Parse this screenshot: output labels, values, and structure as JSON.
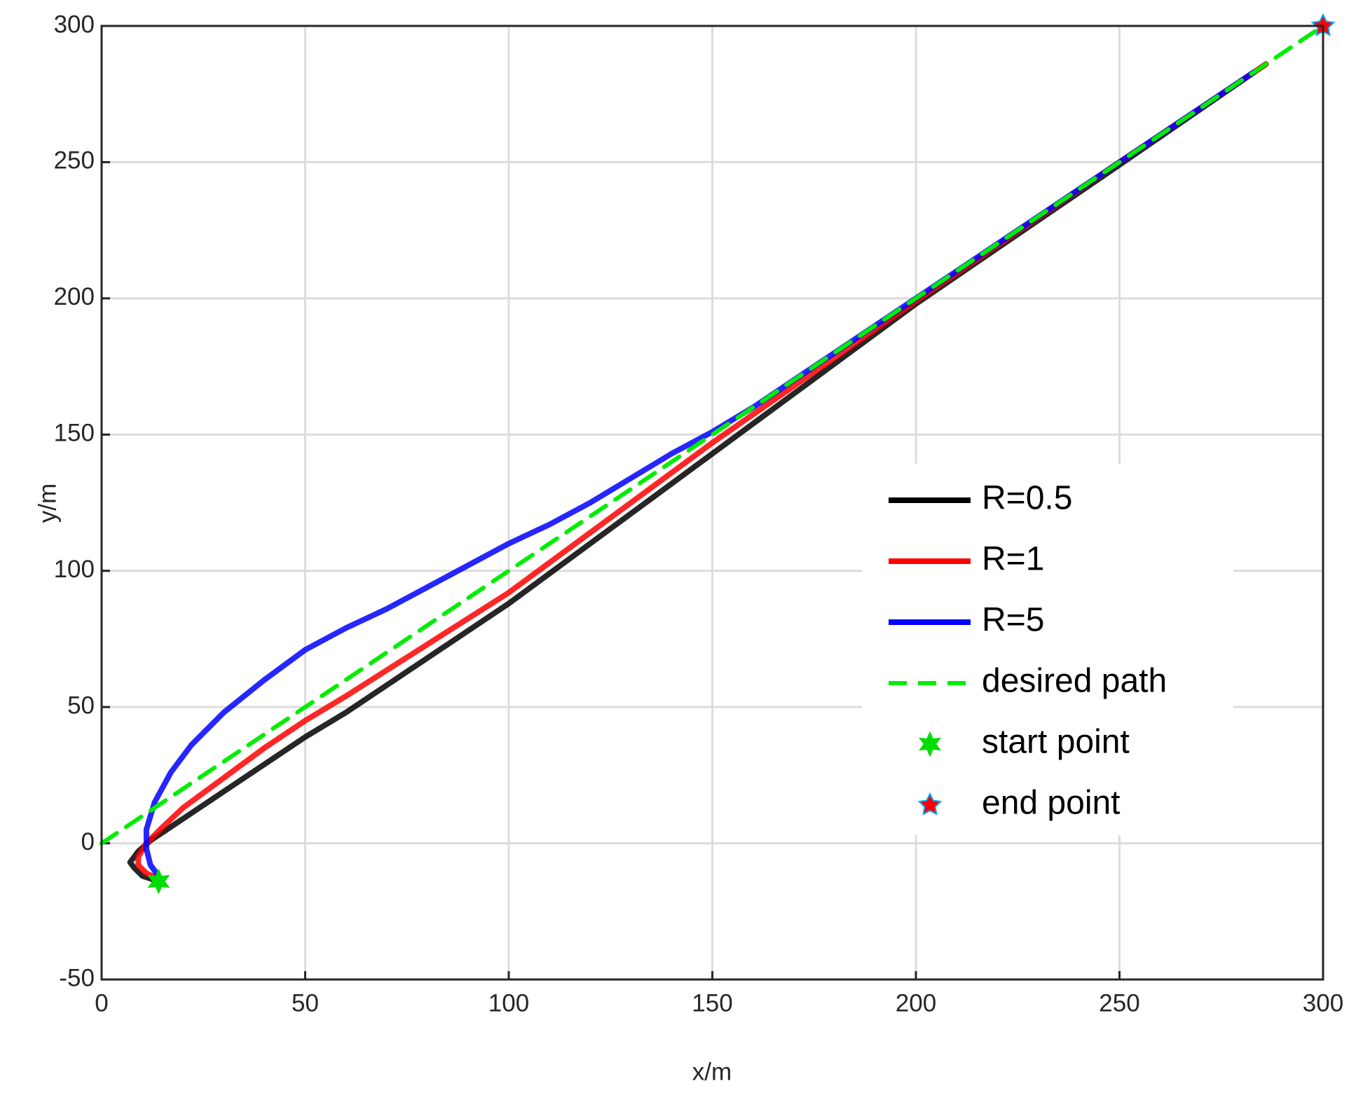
{
  "chart_data": {
    "type": "line",
    "xlabel": "x/m",
    "ylabel": "y/m",
    "xlim": [
      0,
      300
    ],
    "ylim": [
      -50,
      300
    ],
    "xticks": [
      0,
      50,
      100,
      150,
      200,
      250,
      300
    ],
    "yticks": [
      -50,
      0,
      50,
      100,
      150,
      200,
      250,
      300
    ],
    "grid": true,
    "legend": "center right",
    "series": [
      {
        "name": "R=0.5",
        "color": "#000000",
        "dash": false,
        "x": [
          14,
          10,
          8,
          7,
          9,
          12,
          16,
          22,
          30,
          40,
          50,
          60,
          80,
          100,
          150,
          200,
          250,
          286
        ],
        "y": [
          -14,
          -12,
          -9,
          -7,
          -3,
          1,
          5,
          11,
          19,
          29,
          39,
          48,
          68,
          88,
          143,
          198,
          249,
          286
        ]
      },
      {
        "name": "R=1",
        "color": "#ff0000",
        "dash": false,
        "x": [
          14,
          11,
          9,
          9,
          11,
          15,
          20,
          30,
          40,
          50,
          60,
          80,
          100,
          150,
          200,
          250,
          286
        ],
        "y": [
          -13,
          -11,
          -8,
          -5,
          0,
          6,
          13,
          24,
          35,
          45,
          54,
          73,
          92,
          147,
          199,
          250,
          286
        ]
      },
      {
        "name": "R=5",
        "color": "#0000ff",
        "dash": false,
        "x": [
          14,
          12,
          11,
          11,
          13,
          17,
          22,
          30,
          40,
          50,
          60,
          70,
          80,
          90,
          100,
          110,
          120,
          130,
          140,
          150,
          160,
          200,
          250,
          283
        ],
        "y": [
          -12,
          -8,
          -2,
          5,
          15,
          26,
          36,
          48,
          60,
          71,
          79,
          86,
          94,
          102,
          110,
          117,
          125,
          134,
          143,
          151,
          160,
          200,
          250,
          283
        ]
      },
      {
        "name": "desired path",
        "color": "#00ee00",
        "dash": true,
        "x": [
          0,
          300
        ],
        "y": [
          0,
          300
        ]
      },
      {
        "name": "start point",
        "color": "#00dd00",
        "marker": "star6",
        "x": [
          14
        ],
        "y": [
          -14
        ]
      },
      {
        "name": "end point",
        "color": "#ff0000",
        "edge": "#00aaff",
        "marker": "star5",
        "x": [
          300
        ],
        "y": [
          300
        ]
      }
    ]
  }
}
